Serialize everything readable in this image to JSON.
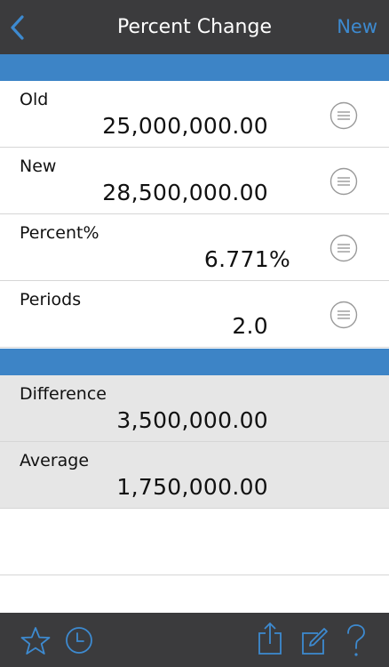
{
  "header": {
    "title": "Percent Change",
    "new_label": "New",
    "back_icon": "chevron-left-icon"
  },
  "inputs": [
    {
      "label": "Old",
      "value": "25,000,000.00"
    },
    {
      "label": "New",
      "value": "28,500,000.00"
    },
    {
      "label": "Percent%",
      "value": "6.771",
      "unit": "%"
    },
    {
      "label": "Periods",
      "value": "2.0"
    }
  ],
  "results": [
    {
      "label": "Difference",
      "value": "3,500,000.00"
    },
    {
      "label": "Average",
      "value": "1,750,000.00"
    }
  ],
  "toolbar": {
    "icons": [
      "star-icon",
      "clock-icon",
      "share-icon",
      "edit-icon",
      "help-icon"
    ]
  },
  "colors": {
    "accent": "#3d8ad0",
    "section_bar": "#3d84c6",
    "bar_background": "#3b3b3d",
    "result_background": "#e6e6e6"
  }
}
